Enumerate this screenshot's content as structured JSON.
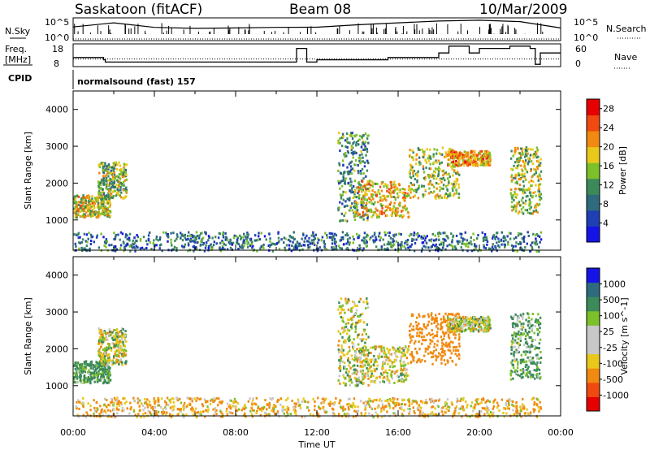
{
  "header": {
    "radar": "Saskatoon (fitACF)",
    "beam": "Beam 08",
    "date": "10/Mar/2009"
  },
  "side_labels": {
    "nsky": "N.Sky",
    "nsearch": "N.Search",
    "freq_line1": "Freq.",
    "freq_line2": "[MHz]",
    "nave": "Nave",
    "cpid": "CPID",
    "nsky_ticks": [
      "10^5",
      "10^0"
    ],
    "nsearch_ticks": [
      "10^5",
      "10^0"
    ],
    "freq_ticks": [
      "18",
      "8"
    ],
    "nave_ticks": [
      "60",
      "0"
    ]
  },
  "cpid_text": "normalsound (fast) 157",
  "colors": {
    "power_scale": [
      "#1414e6",
      "#1f3fb4",
      "#2f6a7e",
      "#3c8a5a",
      "#7cc02a",
      "#e9c81a",
      "#f08a10",
      "#f04a10",
      "#e60000"
    ],
    "velocity_scale": [
      "#e60000",
      "#f04a10",
      "#f08a10",
      "#e9c81a",
      "#c8c8c8",
      "#c8c8c8",
      "#7cc02a",
      "#3c8a5a",
      "#2f6a7e",
      "#1414e6"
    ]
  },
  "chart_data": [
    {
      "type": "line",
      "panel": "N.Sky / N.Search",
      "xlabel": "",
      "ylim_ticks": [
        "10^0",
        "10^5"
      ],
      "series": [
        {
          "name": "N.Sky",
          "x": [
            "00:00",
            "02:00",
            "04:00",
            "06:00",
            "08:00",
            "10:00",
            "12:00",
            "14:00",
            "16:00",
            "18:00",
            "20:00",
            "22:00",
            "24:00"
          ],
          "values": [
            1000,
            8000,
            800,
            500,
            600,
            800,
            900,
            3000,
            8000,
            20000,
            30000,
            15000,
            600
          ]
        },
        {
          "name": "N.Search",
          "x": [
            "00:00",
            "12:00",
            "24:00"
          ],
          "values": [
            1,
            1,
            1
          ]
        }
      ]
    },
    {
      "type": "line",
      "panel": "Freq. / Nave",
      "series": [
        {
          "name": "Freq. [MHz]",
          "x": [
            "00:00",
            "01:30",
            "01:35",
            "05:00",
            "06:00",
            "09:00",
            "09:30",
            "10:30",
            "11:00",
            "11:30",
            "12:00",
            "15:00",
            "15:30",
            "16:00",
            "18:00",
            "18:30",
            "19:30",
            "20:00",
            "21:30",
            "22:00",
            "22:30",
            "22:45",
            "23:00",
            "24:00"
          ],
          "values": [
            12,
            11,
            10,
            10,
            10,
            10,
            10,
            10,
            16,
            10,
            11,
            11,
            12,
            12,
            14,
            17,
            14,
            16,
            17,
            17,
            16,
            9,
            14,
            14
          ]
        },
        {
          "name": "Nave",
          "x": [
            "00:00",
            "24:00"
          ],
          "values": [
            20,
            20
          ]
        }
      ],
      "ylim_freq": [
        8,
        18
      ],
      "ylim_nave": [
        0,
        60
      ]
    },
    {
      "type": "heatmap",
      "panel": "Power",
      "xlabel": "",
      "ylabel": "Slant Range [km]",
      "xlim": [
        "00:00",
        "24:00"
      ],
      "ylim": [
        180,
        4500
      ],
      "x_ticks": [
        "00:00",
        "04:00",
        "08:00",
        "12:00",
        "16:00",
        "20:00",
        "00:00"
      ],
      "y_ticks": [
        1000,
        2000,
        3000,
        4000
      ],
      "colorbar_label": "Power [dB]",
      "colorbar_ticks": [
        4,
        8,
        12,
        16,
        20,
        24,
        28
      ],
      "clim": [
        0,
        30
      ],
      "features": [
        {
          "t": [
            0.0,
            1.8
          ],
          "r": [
            1100,
            1700
          ],
          "level": 18
        },
        {
          "t": [
            1.2,
            2.6
          ],
          "r": [
            1600,
            2600
          ],
          "level": 14
        },
        {
          "t": [
            13.0,
            14.5
          ],
          "r": [
            1000,
            3400
          ],
          "level": 10
        },
        {
          "t": [
            13.8,
            16.5
          ],
          "r": [
            1100,
            2100
          ],
          "level": 20
        },
        {
          "t": [
            16.5,
            19.0
          ],
          "r": [
            1600,
            3000
          ],
          "level": 16
        },
        {
          "t": [
            18.4,
            20.5
          ],
          "r": [
            2500,
            2900
          ],
          "level": 22
        },
        {
          "t": [
            21.5,
            23.0
          ],
          "r": [
            1200,
            3000
          ],
          "level": 16
        },
        {
          "t": [
            0.0,
            23.0
          ],
          "r": [
            180,
            700
          ],
          "level": 8
        }
      ]
    },
    {
      "type": "heatmap",
      "panel": "Velocity",
      "xlabel": "Time UT",
      "ylabel": "Slant Range [km]",
      "xlim": [
        "00:00",
        "24:00"
      ],
      "ylim": [
        180,
        4500
      ],
      "x_ticks": [
        "00:00",
        "04:00",
        "08:00",
        "12:00",
        "16:00",
        "20:00",
        "00:00"
      ],
      "y_ticks": [
        1000,
        2000,
        3000,
        4000
      ],
      "colorbar_label": "Velocity [m s^-1]",
      "colorbar_ticks": [
        -1000,
        -500,
        -100,
        -25,
        25,
        100,
        500,
        1000
      ],
      "features": [
        {
          "t": [
            0.0,
            1.8
          ],
          "r": [
            1100,
            1700
          ],
          "velocity": 150
        },
        {
          "t": [
            1.2,
            2.6
          ],
          "r": [
            1600,
            2600
          ],
          "velocity": 0
        },
        {
          "t": [
            13.0,
            14.5
          ],
          "r": [
            1000,
            3400
          ],
          "velocity": 0
        },
        {
          "t": [
            13.8,
            16.5
          ],
          "r": [
            1100,
            2100
          ],
          "velocity": 0
        },
        {
          "t": [
            16.5,
            19.0
          ],
          "r": [
            1600,
            3000
          ],
          "velocity": -300
        },
        {
          "t": [
            18.4,
            20.5
          ],
          "r": [
            2500,
            2900
          ],
          "velocity": 0
        },
        {
          "t": [
            21.5,
            23.0
          ],
          "r": [
            1200,
            3000
          ],
          "velocity": 120
        },
        {
          "t": [
            0.0,
            23.0
          ],
          "r": [
            180,
            700
          ],
          "velocity": -100
        }
      ]
    }
  ]
}
